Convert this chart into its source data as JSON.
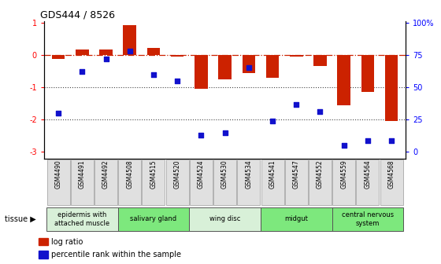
{
  "title": "GDS444 / 8526",
  "samples": [
    "GSM4490",
    "GSM4491",
    "GSM4492",
    "GSM4508",
    "GSM4515",
    "GSM4520",
    "GSM4524",
    "GSM4530",
    "GSM4534",
    "GSM4541",
    "GSM4547",
    "GSM4552",
    "GSM4559",
    "GSM4564",
    "GSM4568"
  ],
  "log_ratio": [
    -0.13,
    0.17,
    0.18,
    0.92,
    0.22,
    -0.05,
    -1.05,
    -0.75,
    -0.55,
    -0.7,
    -0.05,
    -0.35,
    -1.55,
    -1.15,
    -2.05
  ],
  "percentile": [
    30,
    62,
    72,
    78,
    60,
    55,
    13,
    15,
    65,
    24,
    37,
    31,
    5,
    9,
    9
  ],
  "tissues": [
    {
      "name": "epidermis with\nattached muscle",
      "start": 0,
      "end": 3,
      "color": "#d8f0d8"
    },
    {
      "name": "salivary gland",
      "start": 3,
      "end": 6,
      "color": "#7de87d"
    },
    {
      "name": "wing disc",
      "start": 6,
      "end": 9,
      "color": "#d8f0d8"
    },
    {
      "name": "midgut",
      "start": 9,
      "end": 12,
      "color": "#7de87d"
    },
    {
      "name": "central nervous\nsystem",
      "start": 12,
      "end": 15,
      "color": "#7de87d"
    }
  ],
  "bar_color": "#cc2200",
  "dot_color": "#1111cc",
  "hline_color": "#cc2200",
  "dotted_color": "#444444",
  "ylim_left": [
    -3.2,
    1.05
  ],
  "left_ticks": [
    -3,
    -2,
    -1,
    0,
    1
  ],
  "left_tick_labels": [
    "-3",
    "-2",
    "-1",
    "0",
    "1"
  ],
  "right_ticks": [
    0,
    25,
    50,
    75,
    100
  ],
  "right_tick_labels": [
    "0",
    "25",
    "50",
    "75",
    "100%"
  ]
}
